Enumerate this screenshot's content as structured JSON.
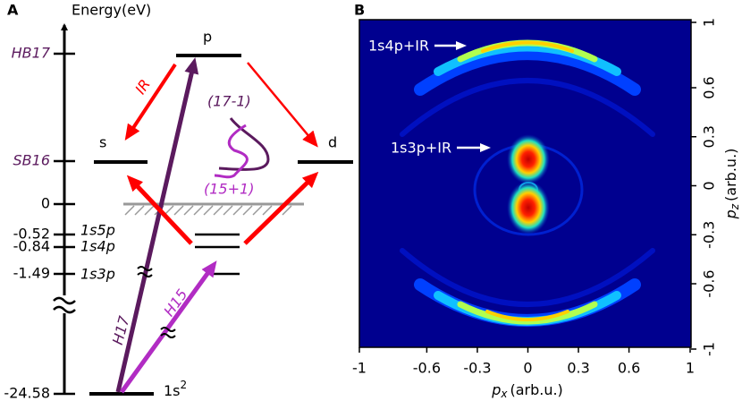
{
  "panel_a": {
    "letter": "A",
    "axis_label": "Energy(eV)",
    "levels": [
      "HB17",
      "SB16",
      "0",
      "-0.52",
      "-0.84",
      "-1.49",
      "-24.58"
    ],
    "states": {
      "p": "p",
      "s": "s",
      "d": "d",
      "ground": "1s",
      "ground_sup": "2"
    },
    "bound_states": [
      "1s5p",
      "1s4p",
      "1s3p"
    ],
    "ir": "IR",
    "h17": "H17",
    "h15": "H15",
    "path_upper": "(17-1)",
    "path_lower": "(15+1)"
  },
  "panel_b": {
    "letter": "B",
    "labels": [
      "1s4p+IR",
      "1s3p+IR"
    ],
    "x_label": {
      "symbol": "p",
      "sub": "x",
      "unit": "(arb.u.)"
    },
    "y_label": {
      "symbol": "p",
      "sub": "z",
      "unit": "(arb.u.)"
    },
    "xlim": [
      -1,
      1
    ],
    "ylim": [
      -1,
      1
    ],
    "xticks": [
      -1,
      -0.6,
      -0.3,
      0,
      0.3,
      0.6,
      1
    ],
    "yticks": [
      -1,
      -0.6,
      -0.3,
      0,
      0.3,
      0.6,
      1
    ]
  }
}
